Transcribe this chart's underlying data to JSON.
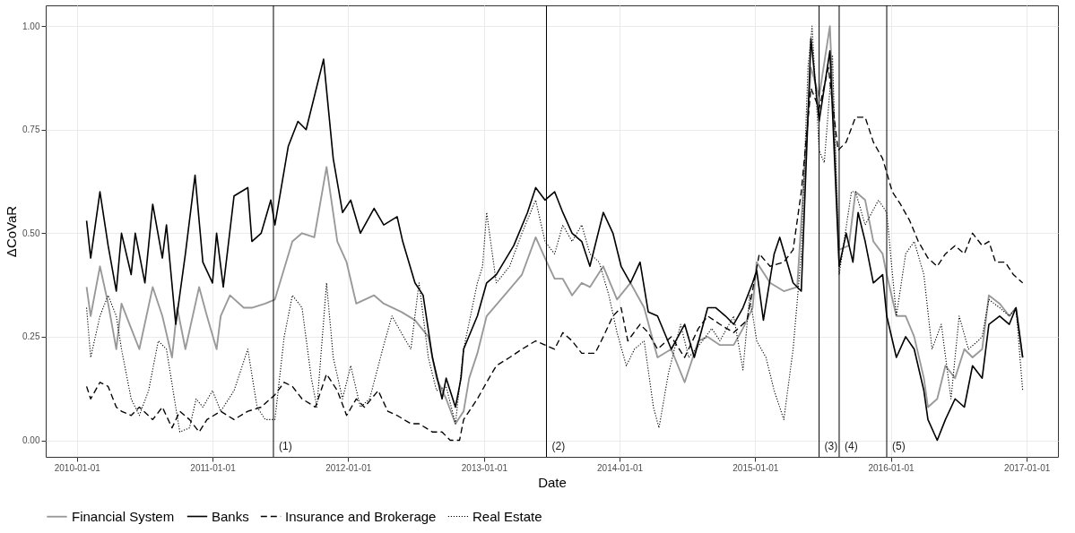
{
  "chart_data": {
    "type": "line",
    "xlabel": "Date",
    "ylabel": "ΔCoVaR",
    "xlim": [
      "2009-10-09",
      "2017-03-26"
    ],
    "ylim": [
      -0.04,
      1.05
    ],
    "xticks": [
      "2010-01-01",
      "2011-01-01",
      "2012-01-01",
      "2013-01-01",
      "2014-01-01",
      "2015-01-01",
      "2016-01-01",
      "2017-01-01"
    ],
    "yticks": [
      {
        "value": 0,
        "label": "0.00"
      },
      {
        "value": 0.25,
        "label": "0.25"
      },
      {
        "value": 0.5,
        "label": "0.50"
      },
      {
        "value": 0.75,
        "label": "0.75"
      },
      {
        "value": 1,
        "label": "1.00"
      }
    ],
    "grid": true,
    "legend": "bottom",
    "series": [
      {
        "name": "Financial System",
        "color": "#999999",
        "line_style": "solid",
        "x": [
          "2010-01-27",
          "2010-02-07",
          "2010-03-04",
          "2010-03-26",
          "2010-04-17",
          "2010-05-01",
          "2010-05-27",
          "2010-06-18",
          "2010-07-24",
          "2010-08-19",
          "2010-09-14",
          "2010-09-28",
          "2010-10-20",
          "2010-11-26",
          "2010-12-17",
          "2011-01-12",
          "2011-01-23",
          "2011-02-17",
          "2011-03-26",
          "2011-04-17",
          "2011-05-23",
          "2011-06-18",
          "2011-08-04",
          "2011-08-30",
          "2011-10-02",
          "2011-11-04",
          "2011-12-03",
          "2011-12-28",
          "2012-01-23",
          "2012-03-11",
          "2012-04-06",
          "2012-05-23",
          "2012-06-29",
          "2012-08-04",
          "2012-08-26",
          "2012-09-21",
          "2012-10-16",
          "2012-11-07",
          "2012-11-22",
          "2012-12-14",
          "2013-01-08",
          "2013-02-25",
          "2013-04-13",
          "2013-05-20",
          "2013-06-14",
          "2013-07-10",
          "2013-08-01",
          "2013-08-26",
          "2013-09-21",
          "2013-10-13",
          "2013-11-18",
          "2013-12-25",
          "2014-01-30",
          "2014-03-08",
          "2014-04-13",
          "2014-05-20",
          "2014-06-25",
          "2014-08-01",
          "2014-08-26",
          "2014-09-28",
          "2014-11-04",
          "2014-11-29",
          "2014-12-25",
          "2015-01-05",
          "2015-02-10",
          "2015-03-19",
          "2015-04-24",
          "2015-05-31",
          "2015-06-22",
          "2015-07-21",
          "2015-08-15",
          "2015-09-10",
          "2015-09-28",
          "2015-10-24",
          "2015-11-15",
          "2015-12-10",
          "2015-12-21",
          "2016-01-16",
          "2016-02-10",
          "2016-03-04",
          "2016-03-30",
          "2016-04-10",
          "2016-05-05",
          "2016-05-27",
          "2016-06-22",
          "2016-07-17",
          "2016-08-08",
          "2016-09-03",
          "2016-09-21",
          "2016-10-20",
          "2016-11-15",
          "2016-12-03",
          "2016-12-21"
        ],
        "values": [
          0.37,
          0.3,
          0.42,
          0.33,
          0.22,
          0.33,
          0.27,
          0.22,
          0.37,
          0.3,
          0.2,
          0.32,
          0.22,
          0.37,
          0.3,
          0.22,
          0.3,
          0.35,
          0.32,
          0.32,
          0.33,
          0.34,
          0.48,
          0.5,
          0.49,
          0.66,
          0.48,
          0.43,
          0.33,
          0.35,
          0.33,
          0.31,
          0.29,
          0.25,
          0.15,
          0.1,
          0.04,
          0.07,
          0.15,
          0.21,
          0.3,
          0.35,
          0.4,
          0.49,
          0.44,
          0.39,
          0.39,
          0.35,
          0.38,
          0.37,
          0.42,
          0.34,
          0.38,
          0.32,
          0.2,
          0.22,
          0.14,
          0.24,
          0.25,
          0.23,
          0.23,
          0.27,
          0.32,
          0.43,
          0.38,
          0.36,
          0.37,
          0.9,
          0.83,
          1.0,
          0.46,
          0.47,
          0.6,
          0.58,
          0.48,
          0.45,
          0.4,
          0.3,
          0.3,
          0.25,
          0.15,
          0.08,
          0.1,
          0.18,
          0.15,
          0.22,
          0.2,
          0.22,
          0.35,
          0.33,
          0.3,
          0.32,
          0.2
        ]
      },
      {
        "name": "Banks",
        "color": "#000000",
        "line_style": "solid",
        "x": [
          "2010-01-27",
          "2010-02-07",
          "2010-03-04",
          "2010-03-26",
          "2010-04-17",
          "2010-05-01",
          "2010-05-27",
          "2010-06-07",
          "2010-07-03",
          "2010-07-24",
          "2010-08-19",
          "2010-08-30",
          "2010-09-24",
          "2010-10-20",
          "2010-11-15",
          "2010-12-06",
          "2011-01-01",
          "2011-01-12",
          "2011-01-30",
          "2011-02-28",
          "2011-04-06",
          "2011-04-17",
          "2011-05-12",
          "2011-06-07",
          "2011-06-18",
          "2011-07-24",
          "2011-08-19",
          "2011-09-10",
          "2011-10-27",
          "2011-11-22",
          "2011-12-17",
          "2012-01-08",
          "2012-02-03",
          "2012-03-11",
          "2012-04-06",
          "2012-05-12",
          "2012-05-27",
          "2012-06-29",
          "2012-07-21",
          "2012-08-15",
          "2012-09-10",
          "2012-09-21",
          "2012-10-16",
          "2012-10-31",
          "2012-11-07",
          "2012-12-14",
          "2013-01-08",
          "2013-02-03",
          "2013-03-22",
          "2013-04-28",
          "2013-05-20",
          "2013-06-14",
          "2013-07-10",
          "2013-08-01",
          "2013-08-26",
          "2013-09-21",
          "2013-10-13",
          "2013-11-18",
          "2013-12-14",
          "2014-01-05",
          "2014-01-30",
          "2014-02-25",
          "2014-03-19",
          "2014-04-13",
          "2014-05-20",
          "2014-06-25",
          "2014-07-21",
          "2014-08-26",
          "2014-09-17",
          "2014-10-13",
          "2014-11-04",
          "2014-11-29",
          "2014-12-25",
          "2015-01-05",
          "2015-01-23",
          "2015-02-21",
          "2015-03-08",
          "2015-04-13",
          "2015-05-05",
          "2015-05-31",
          "2015-06-22",
          "2015-07-21",
          "2015-08-15",
          "2015-09-03",
          "2015-09-21",
          "2015-10-05",
          "2015-10-24",
          "2015-11-15",
          "2015-12-10",
          "2015-12-21",
          "2016-01-16",
          "2016-02-10",
          "2016-03-04",
          "2016-03-30",
          "2016-04-10",
          "2016-05-05",
          "2016-05-27",
          "2016-06-22",
          "2016-07-17",
          "2016-08-08",
          "2016-09-03",
          "2016-09-21",
          "2016-10-20",
          "2016-11-15",
          "2016-12-03",
          "2016-12-21"
        ],
        "values": [
          0.53,
          0.44,
          0.6,
          0.47,
          0.36,
          0.5,
          0.4,
          0.5,
          0.38,
          0.57,
          0.44,
          0.52,
          0.28,
          0.45,
          0.64,
          0.43,
          0.38,
          0.5,
          0.37,
          0.59,
          0.61,
          0.48,
          0.5,
          0.58,
          0.52,
          0.71,
          0.77,
          0.75,
          0.92,
          0.68,
          0.55,
          0.58,
          0.5,
          0.56,
          0.52,
          0.54,
          0.48,
          0.38,
          0.35,
          0.2,
          0.1,
          0.15,
          0.08,
          0.15,
          0.22,
          0.3,
          0.38,
          0.4,
          0.47,
          0.55,
          0.61,
          0.58,
          0.6,
          0.55,
          0.5,
          0.48,
          0.42,
          0.55,
          0.5,
          0.42,
          0.38,
          0.43,
          0.31,
          0.3,
          0.22,
          0.28,
          0.2,
          0.32,
          0.32,
          0.3,
          0.28,
          0.32,
          0.38,
          0.41,
          0.29,
          0.45,
          0.49,
          0.38,
          0.36,
          0.97,
          0.77,
          0.94,
          0.42,
          0.5,
          0.43,
          0.55,
          0.48,
          0.38,
          0.4,
          0.3,
          0.2,
          0.25,
          0.22,
          0.12,
          0.05,
          0.0,
          0.05,
          0.1,
          0.08,
          0.18,
          0.15,
          0.28,
          0.3,
          0.28,
          0.32,
          0.2
        ]
      },
      {
        "name": "Insurance and Brokerage",
        "color": "#000000",
        "line_style": "dashed",
        "x": [
          "2010-01-27",
          "2010-02-07",
          "2010-03-04",
          "2010-03-26",
          "2010-04-17",
          "2010-05-01",
          "2010-05-27",
          "2010-06-18",
          "2010-07-24",
          "2010-08-19",
          "2010-09-14",
          "2010-10-05",
          "2010-10-31",
          "2010-11-26",
          "2010-12-17",
          "2011-01-23",
          "2011-02-28",
          "2011-04-06",
          "2011-05-12",
          "2011-06-18",
          "2011-07-13",
          "2011-08-04",
          "2011-08-30",
          "2011-10-05",
          "2011-11-04",
          "2011-12-03",
          "2011-12-28",
          "2012-01-23",
          "2012-02-14",
          "2012-03-22",
          "2012-04-17",
          "2012-05-12",
          "2012-06-18",
          "2012-07-10",
          "2012-08-15",
          "2012-09-10",
          "2012-10-02",
          "2012-10-27",
          "2012-11-07",
          "2012-12-14",
          "2013-01-08",
          "2013-02-03",
          "2013-03-11",
          "2013-04-13",
          "2013-05-20",
          "2013-06-14",
          "2013-07-10",
          "2013-08-01",
          "2013-08-26",
          "2013-09-21",
          "2013-10-27",
          "2013-11-18",
          "2013-12-14",
          "2014-01-05",
          "2014-01-23",
          "2014-02-25",
          "2014-03-19",
          "2014-04-13",
          "2014-05-20",
          "2014-06-25",
          "2014-08-01",
          "2014-08-26",
          "2014-09-28",
          "2014-11-04",
          "2014-12-10",
          "2015-01-12",
          "2015-02-10",
          "2015-03-19",
          "2015-04-13",
          "2015-05-05",
          "2015-05-31",
          "2015-06-22",
          "2015-07-17",
          "2015-08-12",
          "2015-09-03",
          "2015-09-28",
          "2015-10-24",
          "2015-11-15",
          "2015-12-10",
          "2016-01-05",
          "2016-01-27",
          "2016-02-21",
          "2016-03-15",
          "2016-04-10",
          "2016-05-05",
          "2016-05-27",
          "2016-06-22",
          "2016-07-17",
          "2016-08-08",
          "2016-09-03",
          "2016-09-21",
          "2016-10-09",
          "2016-11-04",
          "2016-11-26",
          "2016-12-21"
        ],
        "values": [
          0.13,
          0.1,
          0.14,
          0.13,
          0.08,
          0.07,
          0.06,
          0.08,
          0.05,
          0.08,
          0.03,
          0.07,
          0.05,
          0.02,
          0.05,
          0.07,
          0.05,
          0.07,
          0.08,
          0.11,
          0.14,
          0.13,
          0.1,
          0.08,
          0.16,
          0.12,
          0.06,
          0.1,
          0.08,
          0.12,
          0.07,
          0.06,
          0.04,
          0.04,
          0.02,
          0.02,
          0.0,
          0.0,
          0.05,
          0.1,
          0.14,
          0.18,
          0.2,
          0.22,
          0.24,
          0.23,
          0.22,
          0.26,
          0.24,
          0.21,
          0.21,
          0.25,
          0.3,
          0.32,
          0.24,
          0.28,
          0.26,
          0.22,
          0.25,
          0.2,
          0.27,
          0.3,
          0.28,
          0.26,
          0.29,
          0.45,
          0.42,
          0.43,
          0.46,
          0.6,
          0.85,
          0.8,
          0.9,
          0.7,
          0.72,
          0.78,
          0.78,
          0.72,
          0.68,
          0.6,
          0.57,
          0.53,
          0.48,
          0.44,
          0.42,
          0.45,
          0.47,
          0.45,
          0.5,
          0.47,
          0.48,
          0.43,
          0.43,
          0.4,
          0.38
        ]
      },
      {
        "name": "Real Estate",
        "color": "#000000",
        "line_style": "dotted",
        "x": [
          "2010-01-27",
          "2010-02-07",
          "2010-03-04",
          "2010-03-26",
          "2010-04-17",
          "2010-05-01",
          "2010-05-27",
          "2010-06-18",
          "2010-07-13",
          "2010-08-08",
          "2010-08-30",
          "2010-09-24",
          "2010-10-05",
          "2010-10-31",
          "2010-11-18",
          "2010-12-06",
          "2011-01-01",
          "2011-01-23",
          "2011-02-28",
          "2011-04-06",
          "2011-05-01",
          "2011-05-23",
          "2011-06-18",
          "2011-07-13",
          "2011-08-04",
          "2011-08-30",
          "2011-09-24",
          "2011-10-09",
          "2011-11-04",
          "2011-11-22",
          "2011-12-17",
          "2012-01-08",
          "2012-02-03",
          "2012-02-28",
          "2012-04-06",
          "2012-04-28",
          "2012-05-23",
          "2012-06-18",
          "2012-07-10",
          "2012-08-04",
          "2012-08-26",
          "2012-09-21",
          "2012-10-16",
          "2012-11-07",
          "2012-12-14",
          "2012-12-28",
          "2013-01-08",
          "2013-02-03",
          "2013-03-11",
          "2013-04-13",
          "2013-05-20",
          "2013-06-14",
          "2013-07-10",
          "2013-08-01",
          "2013-08-26",
          "2013-09-21",
          "2013-10-13",
          "2013-11-07",
          "2013-12-03",
          "2013-12-25",
          "2014-01-19",
          "2014-02-10",
          "2014-03-08",
          "2014-04-02",
          "2014-04-17",
          "2014-05-12",
          "2014-06-14",
          "2014-07-06",
          "2014-08-12",
          "2014-09-06",
          "2014-09-28",
          "2014-11-04",
          "2014-11-29",
          "2014-12-17",
          "2015-01-05",
          "2015-01-30",
          "2015-02-21",
          "2015-03-19",
          "2015-04-13",
          "2015-05-05",
          "2015-05-23",
          "2015-06-03",
          "2015-06-22",
          "2015-07-06",
          "2015-07-28",
          "2015-08-15",
          "2015-09-17",
          "2015-09-28",
          "2015-10-24",
          "2015-11-29",
          "2015-12-21",
          "2016-01-16",
          "2016-02-10",
          "2016-03-04",
          "2016-03-30",
          "2016-04-21",
          "2016-05-16",
          "2016-06-11",
          "2016-07-03",
          "2016-07-28",
          "2016-08-23",
          "2016-09-03",
          "2016-09-21",
          "2016-10-20",
          "2016-11-15",
          "2016-12-03",
          "2016-12-21"
        ],
        "values": [
          0.32,
          0.2,
          0.3,
          0.35,
          0.3,
          0.22,
          0.1,
          0.06,
          0.12,
          0.24,
          0.22,
          0.08,
          0.02,
          0.03,
          0.1,
          0.08,
          0.12,
          0.07,
          0.12,
          0.22,
          0.08,
          0.05,
          0.05,
          0.25,
          0.35,
          0.32,
          0.15,
          0.08,
          0.38,
          0.2,
          0.1,
          0.18,
          0.08,
          0.1,
          0.23,
          0.3,
          0.26,
          0.22,
          0.38,
          0.2,
          0.12,
          0.13,
          0.04,
          0.22,
          0.38,
          0.42,
          0.55,
          0.38,
          0.42,
          0.5,
          0.58,
          0.48,
          0.45,
          0.52,
          0.48,
          0.52,
          0.45,
          0.43,
          0.35,
          0.26,
          0.18,
          0.22,
          0.24,
          0.08,
          0.03,
          0.16,
          0.28,
          0.2,
          0.24,
          0.27,
          0.24,
          0.3,
          0.17,
          0.35,
          0.24,
          0.2,
          0.12,
          0.05,
          0.22,
          0.45,
          0.9,
          1.0,
          0.7,
          0.67,
          0.93,
          0.4,
          0.6,
          0.6,
          0.52,
          0.58,
          0.55,
          0.3,
          0.45,
          0.48,
          0.4,
          0.22,
          0.28,
          0.1,
          0.3,
          0.22,
          0.24,
          0.25,
          0.34,
          0.32,
          0.3,
          0.32,
          0.12
        ]
      }
    ],
    "ref_lines": [
      {
        "axis": "x",
        "value": "2011-06-14",
        "label": "(1)",
        "color": "#000000"
      },
      {
        "axis": "x",
        "value": "2013-06-18",
        "label": "(2)",
        "color": "#000000"
      },
      {
        "axis": "x",
        "value": "2015-06-22",
        "label": "(3)",
        "color": "#000000"
      },
      {
        "axis": "x",
        "value": "2015-08-15",
        "label": "(4)",
        "color": "#000000"
      },
      {
        "axis": "x",
        "value": "2015-12-21",
        "label": "(5)",
        "color": "#000000"
      }
    ]
  }
}
